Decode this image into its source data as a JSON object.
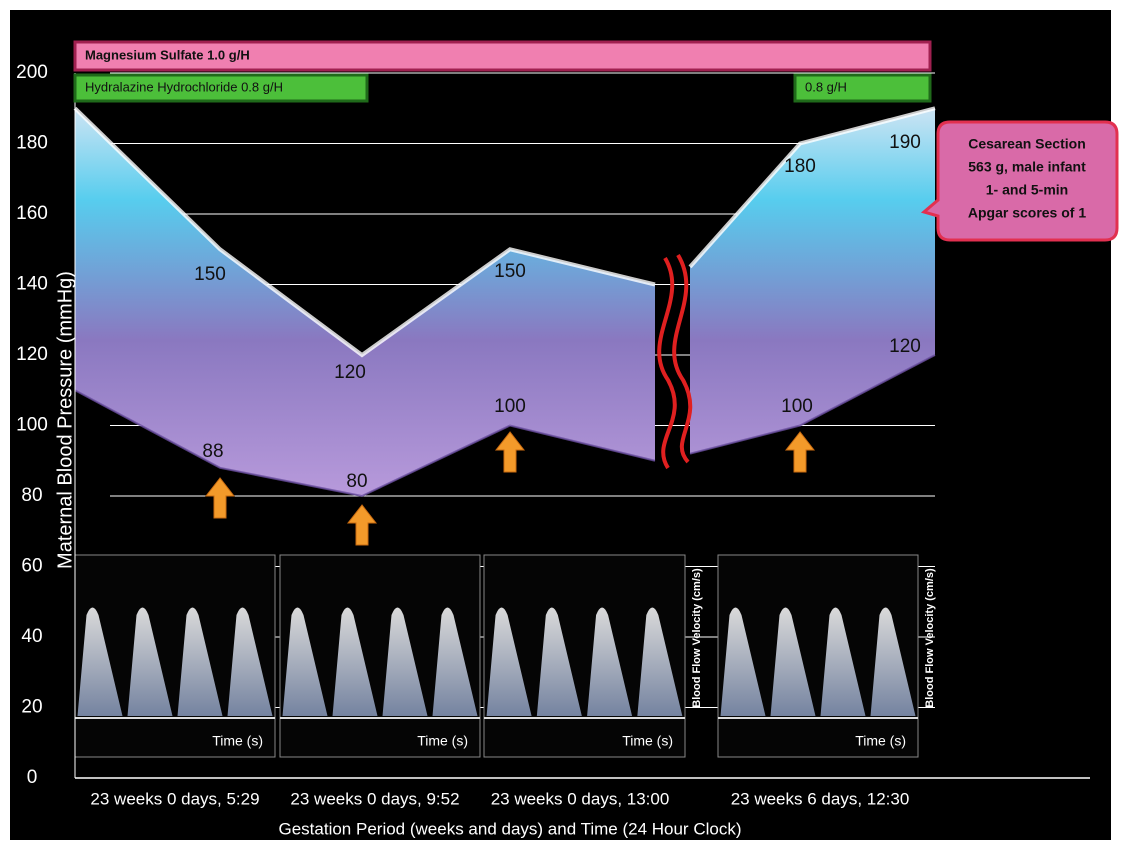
{
  "chart_data": {
    "type": "area",
    "ylabel": "Maternal  Blood  Pressure  (mmHg)",
    "xlabel": "Gestation Period (weeks and days) and Time (24 Hour Clock)",
    "time_labels": [
      "23 weeks 0 days, 5:29",
      "23 weeks 0 days, 9:52",
      "23 weeks 0 days, 13:00",
      "23 weeks 6 days, 12:30"
    ],
    "ylim": [
      0,
      200
    ],
    "yticks": [
      0,
      20,
      40,
      60,
      80,
      100,
      120,
      140,
      160,
      180,
      200
    ],
    "grid": true,
    "series": [
      {
        "color": "#ffffff",
        "values": [
          190,
          150,
          120,
          150,
          140,
          null,
          145,
          180,
          190
        ]
      },
      {
        "color": "#6a4fa0",
        "values": [
          110,
          88,
          80,
          100,
          90,
          null,
          92,
          100,
          120
        ]
      }
    ],
    "drugs": [
      {
        "label": "Magnesium Sulfate  1.0 g/H",
        "color": "#f07fb0"
      },
      {
        "label": "Hydralazine  Hydrochloride   0.8 g/H",
        "color": "#4cbf3a"
      },
      {
        "label": "0.8 g/H",
        "color": "#4cbf3a"
      }
    ],
    "callout": [
      "Cesarean Section",
      "563 g, male infant",
      "1- and 5-min",
      "Apgar scores of 1"
    ],
    "doppler_panels": [
      {
        "xlabel": "Time (s)"
      },
      {
        "xlabel": "Time (s)"
      },
      {
        "xlabel": "Time (s)",
        "ylabel": "Blood Flow Velocity (cm/s)"
      },
      {
        "xlabel": "Time (s)",
        "ylabel": "Blood Flow Velocity (cm/s)"
      }
    ]
  }
}
